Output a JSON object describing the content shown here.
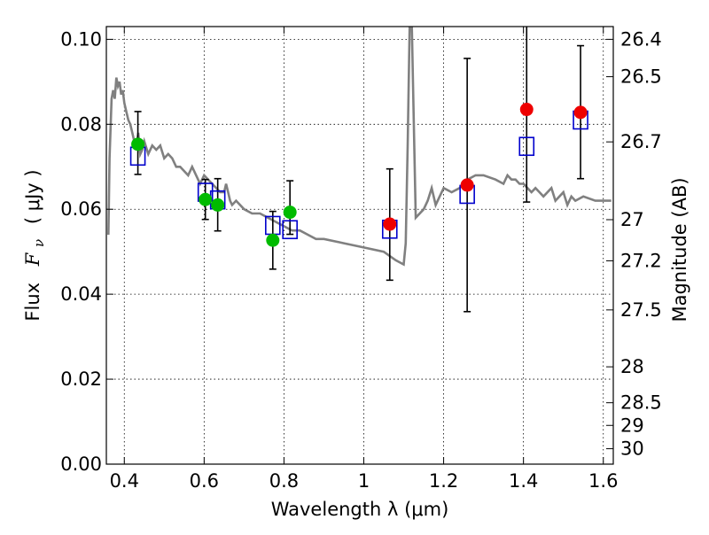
{
  "chart_data": {
    "type": "scatter",
    "xlabel": "Wavelength  λ (μm)",
    "ylabel": "Flux  F_ν  ( μJy )",
    "ylabel_parts": {
      "prefix": "Flux",
      "symbol": "F",
      "subscript": "ν",
      "unit": "( μJy )"
    },
    "ylabel_right": "Magnitude (AB)",
    "xlim": [
      0.355,
      1.625
    ],
    "ylim": [
      0.0,
      0.103
    ],
    "grid": true,
    "x_ticks": [
      0.4,
      0.6,
      0.8,
      1.0,
      1.2,
      1.4,
      1.6
    ],
    "x_tick_labels": [
      "0.4",
      "0.6",
      "0.8",
      "1",
      "1.2",
      "1.4",
      "1.6"
    ],
    "y_ticks": [
      0.0,
      0.02,
      0.04,
      0.06,
      0.08,
      0.1
    ],
    "y_tick_labels": [
      "0.00",
      "0.02",
      "0.04",
      "0.06",
      "0.08",
      "0.10"
    ],
    "right_ticks_mag": [
      26.4,
      26.5,
      26.7,
      27,
      27.2,
      27.5,
      28,
      28.5,
      29,
      30
    ],
    "right_tick_labels": [
      "26.4",
      "26.5",
      "26.7",
      "27",
      "27.2",
      "27.5",
      "28",
      "28.5",
      "29",
      "30"
    ],
    "series": [
      {
        "type": "line",
        "color": "#808080",
        "x": [
          0.36,
          0.363,
          0.368,
          0.372,
          0.376,
          0.38,
          0.384,
          0.388,
          0.392,
          0.396,
          0.4,
          0.405,
          0.41,
          0.415,
          0.42,
          0.425,
          0.43,
          0.435,
          0.44,
          0.445,
          0.45,
          0.46,
          0.47,
          0.48,
          0.49,
          0.5,
          0.51,
          0.52,
          0.53,
          0.54,
          0.55,
          0.56,
          0.57,
          0.58,
          0.59,
          0.6,
          0.62,
          0.64,
          0.65,
          0.655,
          0.66,
          0.665,
          0.67,
          0.68,
          0.7,
          0.72,
          0.74,
          0.76,
          0.78,
          0.8,
          0.82,
          0.84,
          0.86,
          0.88,
          0.9,
          0.95,
          1.0,
          1.05,
          1.08,
          1.1,
          1.105,
          1.11,
          1.115,
          1.12,
          1.13,
          1.15,
          1.16,
          1.17,
          1.18,
          1.19,
          1.2,
          1.22,
          1.24,
          1.26,
          1.28,
          1.3,
          1.33,
          1.35,
          1.36,
          1.37,
          1.38,
          1.39,
          1.4,
          1.41,
          1.42,
          1.43,
          1.44,
          1.45,
          1.47,
          1.48,
          1.49,
          1.5,
          1.51,
          1.52,
          1.53,
          1.55,
          1.58,
          1.62
        ],
        "y": [
          0.054,
          0.072,
          0.086,
          0.088,
          0.086,
          0.091,
          0.089,
          0.09,
          0.087,
          0.088,
          0.085,
          0.083,
          0.081,
          0.08,
          0.078,
          0.076,
          0.075,
          0.078,
          0.073,
          0.074,
          0.076,
          0.073,
          0.075,
          0.074,
          0.075,
          0.072,
          0.073,
          0.072,
          0.07,
          0.07,
          0.069,
          0.068,
          0.07,
          0.068,
          0.066,
          0.068,
          0.066,
          0.064,
          0.064,
          0.066,
          0.064,
          0.062,
          0.061,
          0.062,
          0.06,
          0.059,
          0.059,
          0.058,
          0.057,
          0.056,
          0.055,
          0.055,
          0.054,
          0.053,
          0.053,
          0.052,
          0.051,
          0.05,
          0.048,
          0.047,
          0.052,
          0.075,
          0.104,
          0.104,
          0.058,
          0.06,
          0.062,
          0.065,
          0.061,
          0.063,
          0.065,
          0.064,
          0.065,
          0.067,
          0.068,
          0.068,
          0.067,
          0.066,
          0.068,
          0.067,
          0.067,
          0.066,
          0.066,
          0.065,
          0.064,
          0.065,
          0.064,
          0.063,
          0.065,
          0.062,
          0.063,
          0.064,
          0.061,
          0.063,
          0.062,
          0.063,
          0.062,
          0.062
        ]
      },
      {
        "name": "",
        "type": "scatter",
        "marker": "circle",
        "color": "#00bb00",
        "x": [
          0.434,
          0.603,
          0.634,
          0.772,
          0.815
        ],
        "y": [
          0.0753,
          0.0623,
          0.061,
          0.0527,
          0.0593
        ],
        "yerr": [
          [
            0.0682,
            0.083
          ],
          [
            0.0576,
            0.067
          ],
          [
            0.0549,
            0.0672
          ],
          [
            0.0459,
            0.0595
          ],
          [
            0.0541,
            0.0667
          ]
        ]
      },
      {
        "name": "",
        "type": "scatter",
        "marker": "circle",
        "color": "#ee0000",
        "x": [
          1.065,
          1.259,
          1.408,
          1.543
        ],
        "y": [
          0.0565,
          0.0657,
          0.0835,
          0.0828
        ],
        "yerr": [
          [
            0.0433,
            0.0695
          ],
          [
            0.0359,
            0.0955
          ],
          [
            0.0617,
            0.103
          ],
          [
            0.0672,
            0.0985
          ]
        ]
      },
      {
        "name": "",
        "type": "scatter",
        "marker": "open-square",
        "color": "#0000cc",
        "x": [
          0.434,
          0.603,
          0.634,
          0.772,
          0.815,
          1.065,
          1.259,
          1.408,
          1.543
        ],
        "y": [
          0.0725,
          0.064,
          0.0622,
          0.0562,
          0.0552,
          0.0553,
          0.0635,
          0.0748,
          0.081
        ]
      }
    ]
  }
}
